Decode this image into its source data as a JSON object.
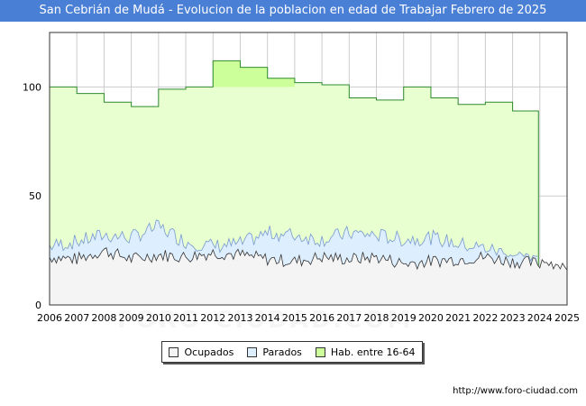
{
  "title": "San Cebrián de Mudá - Evolucion de la poblacion en edad de Trabajar Febrero de 2025",
  "source": "http://www.foro-ciudad.com",
  "watermark": "FORO-CIUDAD.COM",
  "colors": {
    "header": "#4a7fd6",
    "hab_fill": "#e8ffd0",
    "hab_highlight": "#ccff99",
    "hab_line": "#2e8b2e",
    "parados_fill": "#ddeeff",
    "parados_line": "#7799cc",
    "ocupados_fill": "#f4f4f4",
    "ocupados_line": "#333333"
  },
  "legend": {
    "ocupados": "Ocupados",
    "parados": "Parados",
    "hab": "Hab. entre 16-64"
  },
  "chart_data": {
    "type": "area",
    "title": "San Cebrián de Mudá - Evolucion de la poblacion en edad de Trabajar Febrero de 2025",
    "xlabel": "",
    "ylabel": "",
    "xlim": [
      2006,
      2025
    ],
    "ylim": [
      0,
      125
    ],
    "x_ticks": [
      "2006",
      "2007",
      "2008",
      "2009",
      "2010",
      "2011",
      "2012",
      "2013",
      "2014",
      "2015",
      "2016",
      "2017",
      "2018",
      "2019",
      "2020",
      "2021",
      "2022",
      "2023",
      "2024",
      "2025"
    ],
    "y_ticks": [
      0,
      50,
      100
    ],
    "grid": true,
    "legend_position": "bottom",
    "series": [
      {
        "name": "Hab. entre 16-64",
        "type": "step",
        "years": [
          2006,
          2007,
          2008,
          2009,
          2010,
          2011,
          2012,
          2013,
          2014,
          2015,
          2016,
          2017,
          2018,
          2019,
          2020,
          2021,
          2022,
          2023
        ],
        "values": [
          100,
          97,
          93,
          91,
          99,
          100,
          112,
          109,
          104,
          102,
          101,
          95,
          94,
          100,
          95,
          92,
          93,
          89
        ],
        "end": 2023.95
      },
      {
        "name": "Parados",
        "start_values": [
          27,
          29,
          32,
          31,
          36,
          29,
          27,
          28,
          33,
          32,
          30,
          33,
          32,
          30,
          31,
          28,
          26,
          23,
          20
        ]
      },
      {
        "name": "Ocupados",
        "start_values": [
          22,
          21,
          25,
          21,
          23,
          22,
          24,
          23,
          21,
          20,
          22,
          21,
          22,
          19,
          20,
          21,
          22,
          20,
          19,
          19
        ]
      }
    ]
  }
}
